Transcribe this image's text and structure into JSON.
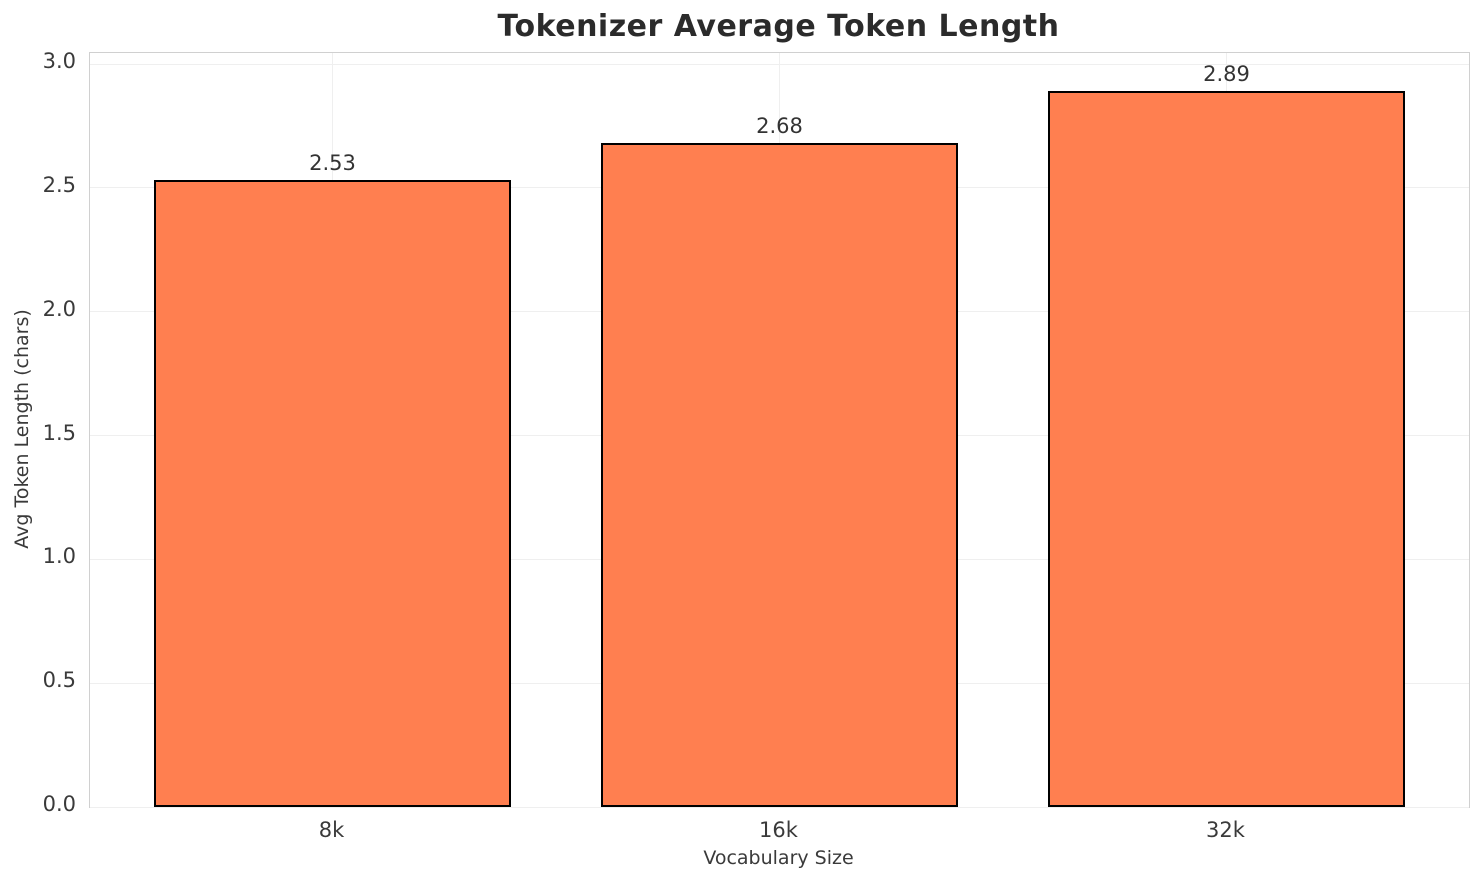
{
  "chart_data": {
    "type": "bar",
    "title": "Tokenizer Average Token Length",
    "xlabel": "Vocabulary Size",
    "ylabel": "Avg Token Length (chars)",
    "categories": [
      "8k",
      "16k",
      "32k"
    ],
    "values": [
      2.53,
      2.68,
      2.89
    ],
    "value_labels": [
      "2.53",
      "2.68",
      "2.89"
    ],
    "ylim": [
      0.0,
      3.0
    ],
    "ytick_labels": [
      "0.0",
      "0.5",
      "1.0",
      "1.5",
      "2.0",
      "2.5",
      "3.0"
    ],
    "ytick_values": [
      0.0,
      0.5,
      1.0,
      1.5,
      2.0,
      2.5,
      3.0
    ],
    "grid": true,
    "legend": null,
    "bar_color": "#FF7F50",
    "bar_edge_color": "#000000",
    "grid_color": "#efefef",
    "spine_color": "#d0d0d0",
    "background_color": "#ffffff",
    "title_color": "#2b2b2b",
    "tick_label_color": "#3a3a3a"
  }
}
